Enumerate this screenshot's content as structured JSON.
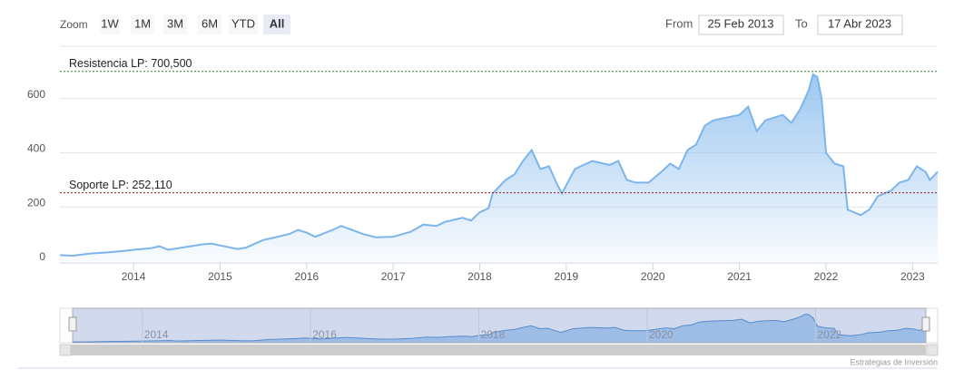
{
  "range_selector": {
    "zoom_label": "Zoom",
    "buttons": [
      "1W",
      "1M",
      "3M",
      "6M",
      "YTD",
      "All"
    ],
    "selected": 5,
    "from_label": "From",
    "from": "25 Feb 2013",
    "to_label": "To",
    "to": "17 Abr 2023"
  },
  "chart_data": {
    "type": "area",
    "color": "#7cb5ec",
    "x": [
      2013.15,
      2013.3,
      2013.5,
      2013.7,
      2013.9,
      2014.0,
      2014.2,
      2014.3,
      2014.4,
      2014.6,
      2014.8,
      2014.9,
      2015.0,
      2015.2,
      2015.3,
      2015.5,
      2015.6,
      2015.8,
      2015.9,
      2016.0,
      2016.1,
      2016.3,
      2016.4,
      2016.5,
      2016.65,
      2016.8,
      2017.0,
      2017.2,
      2017.35,
      2017.5,
      2017.6,
      2017.8,
      2017.9,
      2018.0,
      2018.1,
      2018.15,
      2018.3,
      2018.4,
      2018.5,
      2018.6,
      2018.7,
      2018.8,
      2018.9,
      2018.95,
      2019.1,
      2019.3,
      2019.5,
      2019.6,
      2019.7,
      2019.8,
      2019.95,
      2020.1,
      2020.2,
      2020.3,
      2020.4,
      2020.5,
      2020.6,
      2020.7,
      2020.85,
      2021.0,
      2021.1,
      2021.2,
      2021.3,
      2021.5,
      2021.6,
      2021.7,
      2021.8,
      2021.85,
      2021.9,
      2021.95,
      2022.0,
      2022.1,
      2022.2,
      2022.25,
      2022.4,
      2022.5,
      2022.6,
      2022.75,
      2022.85,
      2022.95,
      2023.05,
      2023.15,
      2023.2,
      2023.29
    ],
    "values": [
      22,
      20,
      28,
      32,
      38,
      42,
      48,
      55,
      42,
      52,
      62,
      65,
      58,
      45,
      50,
      78,
      85,
      100,
      115,
      105,
      90,
      115,
      130,
      118,
      100,
      88,
      90,
      108,
      135,
      130,
      145,
      160,
      150,
      180,
      195,
      250,
      300,
      320,
      370,
      410,
      340,
      350,
      280,
      250,
      340,
      370,
      355,
      370,
      300,
      290,
      290,
      330,
      360,
      340,
      410,
      430,
      500,
      520,
      530,
      540,
      570,
      480,
      520,
      540,
      510,
      560,
      630,
      690,
      680,
      600,
      400,
      360,
      350,
      190,
      170,
      190,
      240,
      260,
      290,
      300,
      350,
      330,
      300,
      330
    ],
    "xlim": [
      2013.15,
      2023.29
    ],
    "xticks": [
      2014,
      2015,
      2016,
      2017,
      2018,
      2019,
      2020,
      2021,
      2022,
      2023
    ],
    "ylim": [
      0,
      790
    ],
    "yticks": [
      0,
      200,
      400,
      600
    ],
    "grid": true,
    "plot_lines": [
      {
        "value": 700.5,
        "label": "Resistencia LP: 700,500",
        "color": "#2e7d32"
      },
      {
        "value": 252.11,
        "label": "Soporte LP: 252,110",
        "color": "#8b1a1a"
      }
    ]
  },
  "navigator": {
    "xticks": [
      2014,
      2016,
      2018,
      2020,
      2022
    ]
  },
  "credits": "Estrategias de Inversión"
}
